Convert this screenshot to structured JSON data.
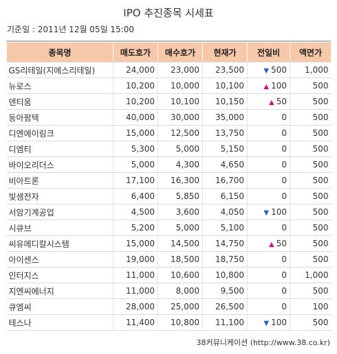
{
  "title": "IPO 추진종목 시세표",
  "base_date": "기준일 : 2011년 12월 05일 15:00",
  "columns": [
    "종목명",
    "매도호가",
    "매수호가",
    "현재가",
    "전일비",
    "액면가"
  ],
  "rows": [
    {
      "name": "GS리테일(지에스리테일)",
      "ask": "24,000",
      "bid": "23,000",
      "price": "23,500",
      "dir": "down",
      "change": "500",
      "par": "1,000"
    },
    {
      "name": "뉴로스",
      "ask": "10,200",
      "bid": "10,000",
      "price": "10,100",
      "dir": "up",
      "change": "100",
      "par": "500"
    },
    {
      "name": "덴티움",
      "ask": "10,200",
      "bid": "10,100",
      "price": "10,150",
      "dir": "up",
      "change": "50",
      "par": "500"
    },
    {
      "name": "동아팜텍",
      "ask": "40,000",
      "bid": "30,000",
      "price": "35,000",
      "dir": "",
      "change": "0",
      "par": "500"
    },
    {
      "name": "디엔에이링크",
      "ask": "15,000",
      "bid": "12,500",
      "price": "13,750",
      "dir": "",
      "change": "0",
      "par": "500"
    },
    {
      "name": "디엠티",
      "ask": "5,300",
      "bid": "5,000",
      "price": "5,150",
      "dir": "",
      "change": "0",
      "par": "500"
    },
    {
      "name": "바이오리더스",
      "ask": "5,000",
      "bid": "4,300",
      "price": "4,650",
      "dir": "",
      "change": "0",
      "par": "500"
    },
    {
      "name": "비아트론",
      "ask": "17,100",
      "bid": "16,300",
      "price": "16,700",
      "dir": "",
      "change": "0",
      "par": "500"
    },
    {
      "name": "빛샘전자",
      "ask": "6,400",
      "bid": "5,850",
      "price": "6,150",
      "dir": "",
      "change": "0",
      "par": "500"
    },
    {
      "name": "서암기계공업",
      "ask": "4,500",
      "bid": "3,600",
      "price": "4,050",
      "dir": "down",
      "change": "100",
      "par": "500"
    },
    {
      "name": "시큐브",
      "ask": "5,200",
      "bid": "5,000",
      "price": "5,100",
      "dir": "",
      "change": "0",
      "par": "500"
    },
    {
      "name": "씨유메디칼시스템",
      "ask": "15,000",
      "bid": "14,500",
      "price": "14,750",
      "dir": "up",
      "change": "50",
      "par": "500"
    },
    {
      "name": "아이센스",
      "ask": "19,000",
      "bid": "18,500",
      "price": "18,750",
      "dir": "",
      "change": "0",
      "par": "500"
    },
    {
      "name": "인터지스",
      "ask": "11,000",
      "bid": "10,600",
      "price": "10,800",
      "dir": "",
      "change": "0",
      "par": "1,000"
    },
    {
      "name": "지엔씨에너지",
      "ask": "11,000",
      "bid": "8,000",
      "price": "9,500",
      "dir": "",
      "change": "0",
      "par": "500"
    },
    {
      "name": "큐엠씨",
      "ask": "28,000",
      "bid": "25,000",
      "price": "26,500",
      "dir": "",
      "change": "0",
      "par": "100"
    },
    {
      "name": "테스나",
      "ask": "11,400",
      "bid": "10,800",
      "price": "11,100",
      "dir": "down",
      "change": "100",
      "par": "500"
    }
  ],
  "footer": "38커뮤니케이션 (http://www.38.co.kr)",
  "colors": {
    "header_bg": "#f7c9aa",
    "up": "#c0188f",
    "down": "#2b5fc8"
  },
  "icons": {
    "up": "up-triangle-icon",
    "down": "down-triangle-icon"
  }
}
